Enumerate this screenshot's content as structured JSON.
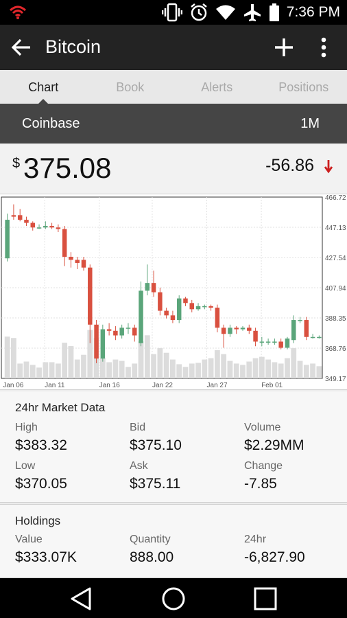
{
  "status_bar": {
    "time": "7:36 PM",
    "icons": [
      "wifi-calling-icon",
      "vibrate-icon",
      "alarm-icon",
      "wifi-icon",
      "airplane-icon",
      "battery-icon"
    ]
  },
  "app_bar": {
    "title": "Bitcoin",
    "back_icon": "arrow-back-icon",
    "add_icon": "plus-icon",
    "menu_icon": "more-vertical-icon"
  },
  "tabs": [
    {
      "label": "Chart",
      "active": true
    },
    {
      "label": "Book",
      "active": false
    },
    {
      "label": "Alerts",
      "active": false
    },
    {
      "label": "Positions",
      "active": false
    }
  ],
  "exchange_bar": {
    "exchange": "Coinbase",
    "period": "1M"
  },
  "price": {
    "currency": "$",
    "value": "375.08",
    "change": "-56.86",
    "direction": "down",
    "down_color": "#cc1f1f"
  },
  "chart_data": {
    "type": "candlestick",
    "x_ticks": [
      "Jan 06",
      "Jan 11",
      "Jan 16",
      "Jan 22",
      "Jan 27",
      "Feb 01"
    ],
    "y_ticks": [
      "466.72",
      "447.13",
      "427.54",
      "407.94",
      "388.35",
      "368.76",
      "349.17"
    ],
    "ylim": [
      349.17,
      466.72
    ],
    "grid": true,
    "up_color": "#5aa57a",
    "down_color": "#d9503f",
    "volume_color": "#dcdcdc",
    "candles": [
      {
        "o": 427,
        "c": 452,
        "h": 456,
        "l": 425
      },
      {
        "o": 455,
        "c": 454,
        "h": 462,
        "l": 452
      },
      {
        "o": 455,
        "c": 452,
        "h": 459,
        "l": 451
      },
      {
        "o": 452,
        "c": 450,
        "h": 454,
        "l": 448
      },
      {
        "o": 450,
        "c": 447,
        "h": 451,
        "l": 445
      },
      {
        "o": 447,
        "c": 447,
        "h": 449,
        "l": 446
      },
      {
        "o": 447,
        "c": 448,
        "h": 451,
        "l": 446
      },
      {
        "o": 448,
        "c": 447,
        "h": 450,
        "l": 446
      },
      {
        "o": 447,
        "c": 446,
        "h": 449,
        "l": 444
      },
      {
        "o": 446,
        "c": 428,
        "h": 448,
        "l": 422
      },
      {
        "o": 428,
        "c": 426,
        "h": 431,
        "l": 421
      },
      {
        "o": 426,
        "c": 424,
        "h": 428,
        "l": 420
      },
      {
        "o": 426,
        "c": 421,
        "h": 428,
        "l": 419
      },
      {
        "o": 421,
        "c": 384,
        "h": 423,
        "l": 372
      },
      {
        "o": 384,
        "c": 362,
        "h": 387,
        "l": 359
      },
      {
        "o": 362,
        "c": 381,
        "h": 384,
        "l": 360
      },
      {
        "o": 381,
        "c": 380,
        "h": 385,
        "l": 377
      },
      {
        "o": 380,
        "c": 377,
        "h": 383,
        "l": 374
      },
      {
        "o": 377,
        "c": 382,
        "h": 384,
        "l": 375
      },
      {
        "o": 382,
        "c": 382,
        "h": 385,
        "l": 378
      },
      {
        "o": 382,
        "c": 377,
        "h": 384,
        "l": 373
      },
      {
        "o": 372,
        "c": 406,
        "h": 412,
        "l": 370
      },
      {
        "o": 406,
        "c": 411,
        "h": 423,
        "l": 403
      },
      {
        "o": 411,
        "c": 405,
        "h": 419,
        "l": 402
      },
      {
        "o": 405,
        "c": 393,
        "h": 408,
        "l": 390
      },
      {
        "o": 393,
        "c": 390,
        "h": 395,
        "l": 388
      },
      {
        "o": 390,
        "c": 387,
        "h": 393,
        "l": 385
      },
      {
        "o": 387,
        "c": 401,
        "h": 403,
        "l": 385
      },
      {
        "o": 401,
        "c": 398,
        "h": 402,
        "l": 396
      },
      {
        "o": 398,
        "c": 394,
        "h": 400,
        "l": 392
      },
      {
        "o": 394,
        "c": 396,
        "h": 398,
        "l": 393
      },
      {
        "o": 396,
        "c": 396,
        "h": 397,
        "l": 394
      },
      {
        "o": 396,
        "c": 395,
        "h": 397,
        "l": 393
      },
      {
        "o": 395,
        "c": 382,
        "h": 397,
        "l": 379
      },
      {
        "o": 382,
        "c": 378,
        "h": 384,
        "l": 369
      },
      {
        "o": 378,
        "c": 382,
        "h": 384,
        "l": 376
      },
      {
        "o": 382,
        "c": 381,
        "h": 383,
        "l": 378
      },
      {
        "o": 381,
        "c": 382,
        "h": 383,
        "l": 380
      },
      {
        "o": 382,
        "c": 380,
        "h": 384,
        "l": 378
      },
      {
        "o": 380,
        "c": 373,
        "h": 382,
        "l": 370
      },
      {
        "o": 373,
        "c": 373,
        "h": 376,
        "l": 370
      },
      {
        "o": 373,
        "c": 373,
        "h": 375,
        "l": 371
      },
      {
        "o": 373,
        "c": 373,
        "h": 375,
        "l": 371
      },
      {
        "o": 373,
        "c": 369,
        "h": 375,
        "l": 368
      },
      {
        "o": 369,
        "c": 375,
        "h": 376,
        "l": 368
      },
      {
        "o": 374,
        "c": 387,
        "h": 390,
        "l": 372
      },
      {
        "o": 387,
        "c": 387,
        "h": 389,
        "l": 385
      },
      {
        "o": 387,
        "c": 376,
        "h": 389,
        "l": 374
      },
      {
        "o": 376,
        "c": 376,
        "h": 378,
        "l": 375
      },
      {
        "o": 376,
        "c": 376,
        "h": 377,
        "l": 375
      }
    ],
    "volume": [
      0.62,
      0.6,
      0.22,
      0.25,
      0.2,
      0.16,
      0.24,
      0.24,
      0.22,
      0.53,
      0.48,
      0.28,
      0.35,
      0.72,
      0.6,
      0.3,
      0.24,
      0.28,
      0.26,
      0.17,
      0.22,
      0.55,
      0.64,
      0.36,
      0.45,
      0.38,
      0.28,
      0.21,
      0.17,
      0.22,
      0.23,
      0.28,
      0.3,
      0.42,
      0.36,
      0.26,
      0.22,
      0.2,
      0.25,
      0.3,
      0.32,
      0.28,
      0.24,
      0.22,
      0.3,
      0.45,
      0.26,
      0.2,
      0.22,
      0.18
    ]
  },
  "market_data": {
    "heading": "24hr Market Data",
    "cells": [
      {
        "label": "High",
        "value": "$383.32"
      },
      {
        "label": "Bid",
        "value": "$375.10"
      },
      {
        "label": "Volume",
        "value": "$2.29MM"
      },
      {
        "label": "Low",
        "value": "$370.05"
      },
      {
        "label": "Ask",
        "value": "$375.11"
      },
      {
        "label": "Change",
        "value": "-7.85"
      }
    ]
  },
  "holdings": {
    "heading": "Holdings",
    "cells": [
      {
        "label": "Value",
        "value": "$333.07K"
      },
      {
        "label": "Quantity",
        "value": "888.00"
      },
      {
        "label": "24hr",
        "value": "-6,827.90"
      }
    ]
  },
  "nav_bar": {
    "icons": [
      "back-triangle-icon",
      "home-circle-icon",
      "recents-square-icon"
    ]
  }
}
